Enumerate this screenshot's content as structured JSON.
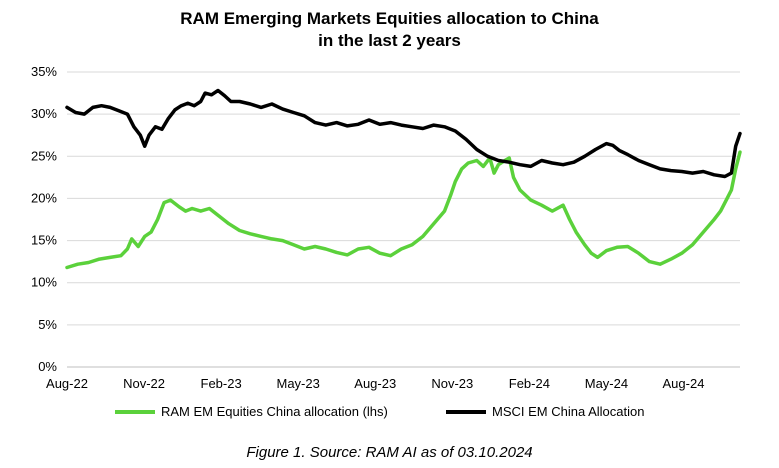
{
  "chart_data": {
    "type": "line",
    "title_line1": "RAM Emerging Markets Equities allocation to China",
    "title_line2": "in the last 2 years",
    "xlabel": "",
    "ylabel": "",
    "x_tick_labels": [
      "Aug-22",
      "Nov-22",
      "Feb-23",
      "May-23",
      "Aug-23",
      "Nov-23",
      "Feb-24",
      "May-24",
      "Aug-24"
    ],
    "y_tick_labels": [
      "0%",
      "5%",
      "10%",
      "15%",
      "20%",
      "25%",
      "30%",
      "35%"
    ],
    "ylim": [
      0,
      35
    ],
    "x_range_months": [
      0,
      26.2
    ],
    "grid": "horizontal",
    "legend_position": "bottom",
    "series": [
      {
        "name": "RAM EM Equities China allocation (lhs)",
        "color": "#5bd13b",
        "points": [
          [
            0,
            11.8
          ],
          [
            0.5,
            12.2
          ],
          [
            1,
            12.4
          ],
          [
            1.5,
            12.8
          ],
          [
            2,
            13.0
          ],
          [
            2.5,
            13.2
          ],
          [
            2.8,
            14.0
          ],
          [
            3,
            15.2
          ],
          [
            3.3,
            14.3
          ],
          [
            3.6,
            15.5
          ],
          [
            3.9,
            16.0
          ],
          [
            4.2,
            17.5
          ],
          [
            4.5,
            19.5
          ],
          [
            4.8,
            19.8
          ],
          [
            5.2,
            19.0
          ],
          [
            5.5,
            18.5
          ],
          [
            5.8,
            18.8
          ],
          [
            6.2,
            18.5
          ],
          [
            6.6,
            18.8
          ],
          [
            7,
            18.0
          ],
          [
            7.5,
            17.0
          ],
          [
            8,
            16.2
          ],
          [
            8.5,
            15.8
          ],
          [
            9,
            15.5
          ],
          [
            9.5,
            15.2
          ],
          [
            10,
            15.0
          ],
          [
            10.5,
            14.5
          ],
          [
            11,
            14.0
          ],
          [
            11.5,
            14.3
          ],
          [
            12,
            14.0
          ],
          [
            12.5,
            13.6
          ],
          [
            13,
            13.3
          ],
          [
            13.5,
            14.0
          ],
          [
            14,
            14.2
          ],
          [
            14.5,
            13.5
          ],
          [
            15,
            13.2
          ],
          [
            15.5,
            14.0
          ],
          [
            16,
            14.5
          ],
          [
            16.5,
            15.5
          ],
          [
            17,
            17.0
          ],
          [
            17.5,
            18.5
          ],
          [
            17.8,
            20.5
          ],
          [
            18,
            22.0
          ],
          [
            18.3,
            23.5
          ],
          [
            18.6,
            24.2
          ],
          [
            19,
            24.5
          ],
          [
            19.3,
            23.8
          ],
          [
            19.6,
            24.8
          ],
          [
            19.8,
            23.0
          ],
          [
            20,
            24.0
          ],
          [
            20.3,
            24.5
          ],
          [
            20.5,
            24.8
          ],
          [
            20.7,
            22.5
          ],
          [
            21,
            21.0
          ],
          [
            21.5,
            19.8
          ],
          [
            22,
            19.2
          ],
          [
            22.5,
            18.5
          ],
          [
            23,
            19.2
          ],
          [
            23.3,
            17.5
          ],
          [
            23.6,
            16.0
          ],
          [
            24,
            14.5
          ],
          [
            24.3,
            13.5
          ],
          [
            24.6,
            13.0
          ],
          [
            25,
            13.8
          ],
          [
            25.5,
            14.2
          ],
          [
            26,
            14.3
          ],
          [
            26.5,
            13.5
          ],
          [
            27,
            12.5
          ],
          [
            27.5,
            12.2
          ],
          [
            28,
            12.8
          ],
          [
            28.5,
            13.5
          ],
          [
            29,
            14.5
          ],
          [
            29.5,
            16.0
          ],
          [
            30,
            17.5
          ],
          [
            30.3,
            18.5
          ],
          [
            30.6,
            20.0
          ],
          [
            30.8,
            21.0
          ],
          [
            31,
            23.5
          ],
          [
            31.2,
            25.5
          ]
        ]
      },
      {
        "name": "MSCI EM China Allocation",
        "color": "#000000",
        "points": [
          [
            0,
            30.8
          ],
          [
            0.4,
            30.2
          ],
          [
            0.8,
            30.0
          ],
          [
            1.2,
            30.8
          ],
          [
            1.6,
            31.0
          ],
          [
            2,
            30.8
          ],
          [
            2.4,
            30.4
          ],
          [
            2.8,
            30.0
          ],
          [
            3.1,
            28.5
          ],
          [
            3.4,
            27.5
          ],
          [
            3.6,
            26.2
          ],
          [
            3.8,
            27.5
          ],
          [
            4.1,
            28.5
          ],
          [
            4.4,
            28.2
          ],
          [
            4.7,
            29.5
          ],
          [
            5,
            30.5
          ],
          [
            5.3,
            31.0
          ],
          [
            5.6,
            31.3
          ],
          [
            5.9,
            31.0
          ],
          [
            6.2,
            31.5
          ],
          [
            6.4,
            32.5
          ],
          [
            6.7,
            32.3
          ],
          [
            7,
            32.8
          ],
          [
            7.3,
            32.2
          ],
          [
            7.6,
            31.5
          ],
          [
            8,
            31.5
          ],
          [
            8.5,
            31.2
          ],
          [
            9,
            30.8
          ],
          [
            9.5,
            31.2
          ],
          [
            10,
            30.6
          ],
          [
            10.5,
            30.2
          ],
          [
            11,
            29.8
          ],
          [
            11.5,
            29.0
          ],
          [
            12,
            28.7
          ],
          [
            12.5,
            29.0
          ],
          [
            13,
            28.6
          ],
          [
            13.5,
            28.8
          ],
          [
            14,
            29.3
          ],
          [
            14.5,
            28.8
          ],
          [
            15,
            29.0
          ],
          [
            15.5,
            28.7
          ],
          [
            16,
            28.5
          ],
          [
            16.5,
            28.3
          ],
          [
            17,
            28.7
          ],
          [
            17.5,
            28.5
          ],
          [
            18,
            28.0
          ],
          [
            18.5,
            27.0
          ],
          [
            19,
            25.8
          ],
          [
            19.5,
            25.0
          ],
          [
            20,
            24.5
          ],
          [
            20.5,
            24.3
          ],
          [
            21,
            24.0
          ],
          [
            21.5,
            23.8
          ],
          [
            22,
            24.5
          ],
          [
            22.5,
            24.2
          ],
          [
            23,
            24.0
          ],
          [
            23.5,
            24.3
          ],
          [
            24,
            25.0
          ],
          [
            24.5,
            25.8
          ],
          [
            25,
            26.5
          ],
          [
            25.3,
            26.3
          ],
          [
            25.6,
            25.7
          ],
          [
            26,
            25.2
          ],
          [
            26.5,
            24.5
          ],
          [
            27,
            24.0
          ],
          [
            27.5,
            23.5
          ],
          [
            28,
            23.3
          ],
          [
            28.5,
            23.2
          ],
          [
            29,
            23.0
          ],
          [
            29.5,
            23.2
          ],
          [
            30,
            22.8
          ],
          [
            30.5,
            22.6
          ],
          [
            30.8,
            23.0
          ],
          [
            31,
            26.2
          ],
          [
            31.2,
            27.7
          ]
        ]
      }
    ]
  },
  "caption": "Figure 1. Source: RAM AI as of 03.10.2024"
}
